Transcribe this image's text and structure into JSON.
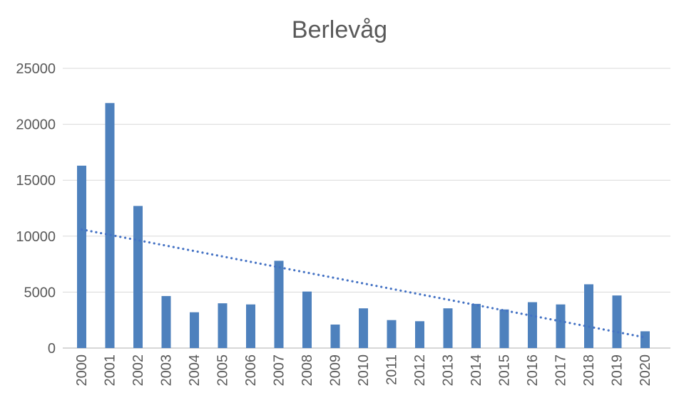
{
  "page": {
    "title": "Berlevåg"
  },
  "colors": {
    "bar": "#4E81BD",
    "trendline": "#4472C4",
    "gridline": "#D9D9D9",
    "axis_line": "#BFBFBF",
    "text": "#595959",
    "background": "#FFFFFF"
  },
  "chart_data": {
    "type": "bar",
    "title": "Berlevåg",
    "xlabel": "",
    "ylabel": "",
    "categories": [
      "2000",
      "2001",
      "2002",
      "2003",
      "2004",
      "2005",
      "2006",
      "2007",
      "2008",
      "2009",
      "2010",
      "2011",
      "2012",
      "2013",
      "2014",
      "2015",
      "2016",
      "2017",
      "2018",
      "2019",
      "2020"
    ],
    "values": [
      16300,
      21900,
      12700,
      4650,
      3200,
      4000,
      3900,
      7800,
      5050,
      2100,
      3550,
      2500,
      2400,
      3550,
      3950,
      3450,
      4100,
      3900,
      5700,
      4700,
      1500
    ],
    "ylim": [
      0,
      25000
    ],
    "yticks": [
      0,
      5000,
      10000,
      15000,
      20000,
      25000
    ],
    "grid": true,
    "legend_position": "none",
    "x_label_rotation_deg": -90,
    "trendline": {
      "type": "linear",
      "style": "dotted",
      "start_category": "2000",
      "end_category": "2020",
      "start_value": 10600,
      "end_value": 950
    }
  }
}
